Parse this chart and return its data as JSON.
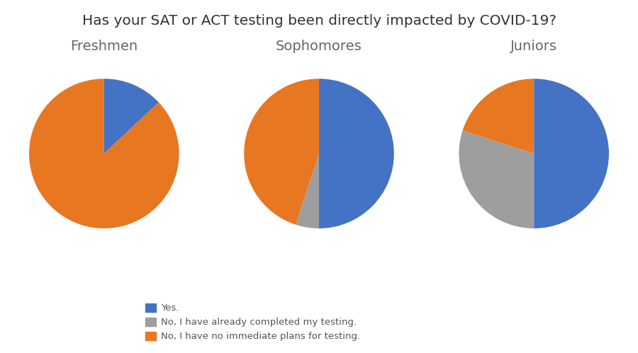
{
  "title": "Has your SAT or ACT testing been directly impacted by COVID-19?",
  "groups": [
    "Freshmen",
    "Sophomores",
    "Juniors"
  ],
  "colors": {
    "yes": "#4472C4",
    "completed": "#9E9E9E",
    "no_plans": "#E87722"
  },
  "slices": {
    "Freshmen": [
      13,
      0,
      87
    ],
    "Sophomores": [
      50,
      5,
      45
    ],
    "Juniors": [
      50,
      30,
      20
    ]
  },
  "startangles": {
    "Freshmen": 90,
    "Sophomores": 90,
    "Juniors": 90
  },
  "legend_labels": [
    "Yes.",
    "No, I have already completed my testing.",
    "No, I have no immediate plans for testing."
  ],
  "title_fontsize": 14.5,
  "subtitle_fontsize": 14,
  "background_color": "#ffffff"
}
